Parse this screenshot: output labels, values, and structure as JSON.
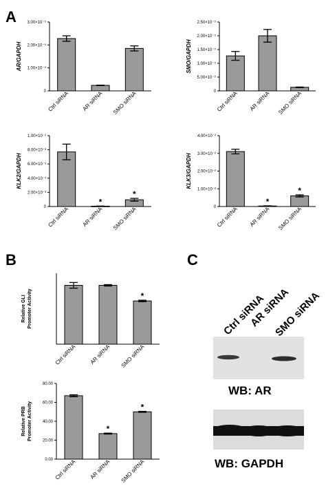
{
  "panels": {
    "a": "A",
    "b": "B",
    "c": "C"
  },
  "chart_data": [
    {
      "type": "bar",
      "panel": "A",
      "ylabel": "AR/GAPDH",
      "categories": [
        "Ctrl siRNA",
        "AR siRNA",
        "SMO siRNA"
      ],
      "values": [
        2.28e-05,
        2.4e-06,
        1.85e-05
      ],
      "errors": [
        1.2e-06,
        1e-07,
        1.1e-06
      ],
      "significant": [
        false,
        false,
        false
      ],
      "ylim": [
        0,
        3e-05
      ],
      "yticks": [
        0,
        1e-05,
        2e-05,
        3e-05
      ],
      "yticklabels": [
        "0",
        "1.00×10⁻⁵",
        "2.00×10⁻⁵",
        "3.00×10⁻⁵"
      ]
    },
    {
      "type": "bar",
      "panel": "A",
      "ylabel": "SMO/GAPDH",
      "categories": [
        "Ctrl siRNA",
        "AR siRNA",
        "SMO siRNA"
      ],
      "values": [
        1.27e-05,
        2e-05,
        1.3e-06
      ],
      "errors": [
        1.6e-06,
        2.3e-06,
        1e-07
      ],
      "significant": [
        false,
        false,
        false
      ],
      "ylim": [
        0,
        2.5e-05
      ],
      "yticks": [
        0,
        5e-06,
        1e-05,
        1.5e-05,
        2e-05,
        2.5e-05
      ],
      "yticklabels": [
        "0",
        "5.00×10⁻⁶",
        "1.00×10⁻⁵",
        "1.50×10⁻⁵",
        "2.00×10⁻⁵",
        "2.50×10⁻⁵"
      ]
    },
    {
      "type": "bar",
      "panel": "A",
      "ylabel": "KLK2/GAPDH",
      "categories": [
        "Ctrl siRNA",
        "AR siRNA",
        "SMO siRNA"
      ],
      "values": [
        0.0077,
        5e-05,
        0.00095
      ],
      "errors": [
        0.0011,
        2e-05,
        0.0002
      ],
      "significant": [
        false,
        true,
        true
      ],
      "ylim": [
        0,
        0.01
      ],
      "yticks": [
        0,
        0.002,
        0.004,
        0.006,
        0.008,
        0.01
      ],
      "yticklabels": [
        "0",
        "2.00×10⁻³",
        "4.00×10⁻³",
        "6.00×10⁻³",
        "8.00×10⁻³",
        "1.00×10⁻²"
      ]
    },
    {
      "type": "bar",
      "panel": "A",
      "ylabel": "KLK3/GAPDH",
      "categories": [
        "Ctrl siRNA",
        "AR siRNA",
        "SMO siRNA"
      ],
      "values": [
        0.031,
        0.0003,
        0.006
      ],
      "errors": [
        0.0013,
        0.0001,
        0.0006
      ],
      "significant": [
        false,
        true,
        true
      ],
      "ylim": [
        0,
        0.04
      ],
      "yticks": [
        0,
        0.01,
        0.02,
        0.03,
        0.04
      ],
      "yticklabels": [
        "0",
        "1.00×10⁻²",
        "2.00×10⁻²",
        "3.00×10⁻²",
        "4.00×10⁻²"
      ]
    },
    {
      "type": "bar",
      "panel": "B",
      "ylabel": "Relative GLI Promoter Activity",
      "ylabel_lines": [
        "Relative GLI",
        "Promoter Activity"
      ],
      "categories": [
        "Ctrl siRNA",
        "AR siRNA",
        "SMO siRNA"
      ],
      "values": [
        0.83,
        0.83,
        0.61
      ],
      "errors": [
        0.04,
        0.01,
        0.01
      ],
      "significant": [
        false,
        false,
        true
      ],
      "ylim": [
        0,
        1.0
      ],
      "yticks": [],
      "yticklabels": []
    },
    {
      "type": "bar",
      "panel": "B",
      "ylabel": "Relative PRB Promoter Activity",
      "ylabel_lines": [
        "Relative PRB",
        "Promoter Activity"
      ],
      "categories": [
        "Ctrl siRNA",
        "AR siRNA",
        "SMO siRNA"
      ],
      "values": [
        67,
        27,
        50
      ],
      "errors": [
        1,
        0.5,
        0.5
      ],
      "significant": [
        false,
        true,
        true
      ],
      "ylim": [
        0,
        80
      ],
      "yticks": [
        0,
        20,
        40,
        60,
        80
      ],
      "yticklabels": [
        "0.00",
        "20.00",
        "40.00",
        "60.00",
        "80.00"
      ]
    }
  ],
  "western_blot": {
    "lanes": [
      "Ctrl siRNA",
      "AR siRNA",
      "SMO siRNA"
    ],
    "blots": [
      {
        "label": "WB:  AR",
        "band_intensity": [
          0.85,
          0.0,
          0.9
        ]
      },
      {
        "label": "WB:  GAPDH",
        "band_intensity": [
          1.0,
          1.0,
          1.0
        ]
      }
    ]
  }
}
